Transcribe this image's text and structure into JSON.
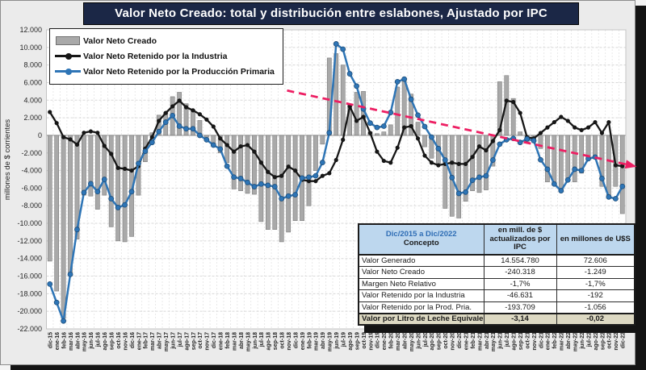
{
  "title": "Valor Neto Creado: total y distribución entre eslabones, Ajustado  por IPC",
  "colors": {
    "title_bg": "#1b2746",
    "title_fg": "#ffffff",
    "frame_bg": "#ebebeb",
    "plot_bg": "#ffffff",
    "bar_fill": "#a9a9a9",
    "bar_stroke": "#707070",
    "industria": "#161616",
    "primaria": "#2e75b6",
    "primaria_edge": "#1f4e79",
    "trend": "#ed1f63",
    "grid": "#d8d8d8",
    "zero_line": "#9a9a9a",
    "table_header_bg": "#bdd7ee",
    "table_header_accent": "#2e6db5",
    "table_last_row_bg": "#ddd9c3"
  },
  "y_axis": {
    "title": "millones de $ corrientes",
    "ticks": [
      "12.000",
      "10.000",
      "8.000",
      "6.000",
      "4.000",
      "2.000",
      "0",
      "-2.000",
      "-4.000",
      "-6.000",
      "-8.000",
      "-10.000",
      "-12.000",
      "-14.000",
      "-16.000",
      "-18.000",
      "-20.000",
      "-22.000"
    ]
  },
  "legend": {
    "items": [
      {
        "label": "Valor Neto Creado",
        "type": "bar",
        "color": "#a9a9a9"
      },
      {
        "label": "Valor Neto Retenido por la Industria",
        "type": "line",
        "color": "#161616"
      },
      {
        "label": "Valor Neto Retenido por la Producción Primaria",
        "type": "line",
        "color": "#2e75b6"
      }
    ]
  },
  "chart_data": {
    "type": "bar",
    "title": "Valor Neto Creado: total y distribución entre eslabones, Ajustado por IPC",
    "ylabel": "millones de $ corrientes",
    "ylim": [
      -22000,
      12000
    ],
    "y_step": 2000,
    "grid": true,
    "legend_position": "top-left",
    "categories": [
      "dic-15",
      "ene-16",
      "feb-16",
      "mar-16",
      "abr-16",
      "may-16",
      "jun-16",
      "jul-16",
      "ago-16",
      "sep-16",
      "oct-16",
      "nov-16",
      "dic-16",
      "ene-17",
      "feb-17",
      "mar-17",
      "abr-17",
      "may-17",
      "jun-17",
      "jul-17",
      "ago-17",
      "sep-17",
      "oct-17",
      "nov-17",
      "dic-17",
      "ene-18",
      "feb-18",
      "mar-18",
      "abr-18",
      "may-18",
      "jun-18",
      "jul-18",
      "ago-18",
      "sep-18",
      "oct-18",
      "nov-18",
      "dic-18",
      "ene-19",
      "feb-19",
      "mar-19",
      "abr-19",
      "may-19",
      "jun-19",
      "jul-19",
      "ago-19",
      "sep-19",
      "oct-19",
      "nov-19",
      "dic-19",
      "ene-20",
      "feb-20",
      "mar-20",
      "abr-20",
      "may-20",
      "jun-20",
      "jul-20",
      "ago-20",
      "sep-20",
      "oct-20",
      "nov-20",
      "dic-20",
      "ene-21",
      "feb-21",
      "mar-21",
      "abr-21",
      "may-21",
      "jun-21",
      "jul-21",
      "ago-21",
      "sep-21",
      "oct-21",
      "nov-21",
      "dic-21",
      "ene-22",
      "feb-22",
      "mar-22",
      "abr-22",
      "may-22",
      "jun-22",
      "jul-22",
      "ago-22",
      "sep-22",
      "oct-22",
      "nov-22",
      "dic-22"
    ],
    "series": [
      {
        "name": "Valor Neto Creado",
        "type": "bar",
        "values": [
          -14300,
          -17700,
          -20800,
          -15900,
          -11800,
          -6800,
          -6900,
          -8400,
          -6800,
          -10400,
          -12000,
          -12100,
          -11500,
          -6800,
          -3000,
          300,
          2300,
          2600,
          4400,
          4900,
          3600,
          2900,
          1700,
          -200,
          -1100,
          -2000,
          -3100,
          -6100,
          -6300,
          -6600,
          -6700,
          -9800,
          -10700,
          -10700,
          -12100,
          -11000,
          -9700,
          -9700,
          -8000,
          -4000,
          -1000,
          8800,
          9300,
          8000,
          3500,
          4900,
          5000,
          400,
          200,
          400,
          1200,
          5500,
          6500,
          4700,
          1500,
          -1300,
          -2600,
          -3200,
          -8300,
          -9200,
          -9400,
          -7500,
          -6300,
          -6500,
          -6200,
          -3500,
          6100,
          6800,
          4200,
          400,
          -900,
          -600,
          -1500,
          -5300,
          -5500,
          -6300,
          -5100,
          -5300,
          -4300,
          -2800,
          -2500,
          -5800,
          -7000,
          -5800,
          -8900
        ]
      },
      {
        "name": "Valor Neto Retenido por la Industria",
        "type": "line",
        "values": [
          2650,
          1400,
          -200,
          -450,
          -1050,
          300,
          450,
          300,
          -1200,
          -2100,
          -3700,
          -3800,
          -4000,
          -3500,
          -1500,
          -200,
          1650,
          2550,
          3300,
          3950,
          3200,
          2850,
          2400,
          1800,
          1000,
          -350,
          -1100,
          -1850,
          -1250,
          -1100,
          -1850,
          -3100,
          -4150,
          -4750,
          -4600,
          -3550,
          -4000,
          -5050,
          -5200,
          -5200,
          -4600,
          -4300,
          -2800,
          -500,
          3300,
          1650,
          2100,
          275,
          -1850,
          -2900,
          -3100,
          -1400,
          900,
          1050,
          -350,
          -2300,
          -3100,
          -3400,
          -3250,
          -3100,
          -3250,
          -3250,
          -2450,
          -1250,
          -1700,
          -650,
          600,
          3950,
          3800,
          2550,
          -200,
          -350,
          275,
          900,
          1500,
          2100,
          1650,
          900,
          600,
          900,
          1500,
          275,
          1500,
          -3400,
          -3500
        ]
      },
      {
        "name": "Valor Neto Retenido por la Producción Primaria",
        "type": "line",
        "values": [
          -16900,
          -19000,
          -21100,
          -15800,
          -10700,
          -6500,
          -5500,
          -6400,
          -5000,
          -7200,
          -8200,
          -7900,
          -6400,
          -3200,
          -1800,
          -800,
          430,
          1500,
          2250,
          1050,
          750,
          750,
          0,
          -500,
          -1100,
          -1550,
          -3500,
          -4750,
          -4900,
          -5350,
          -5830,
          -5530,
          -5680,
          -5830,
          -7200,
          -6900,
          -6750,
          -4850,
          -4760,
          -4600,
          -3080,
          300,
          10400,
          9800,
          7000,
          5600,
          3000,
          1400,
          900,
          1050,
          2600,
          6100,
          6400,
          4100,
          2300,
          1000,
          -200,
          -1500,
          -2800,
          -4800,
          -6600,
          -6450,
          -5100,
          -4760,
          -4600,
          -2800,
          -1000,
          -500,
          -350,
          -800,
          -400,
          -600,
          -2780,
          -3850,
          -5530,
          -6290,
          -5070,
          -3850,
          -4000,
          -2650,
          -2470,
          -4900,
          -7000,
          -7200,
          -5800
        ]
      }
    ],
    "trend_line": {
      "from_index": 35.3,
      "from_value": 5100,
      "to_index": 85.1,
      "to_value": -3300,
      "style": "dashed",
      "arrow": true
    }
  },
  "table": {
    "header": {
      "range": "Dic/2015 a Dic/2022",
      "concept": "Concepto",
      "col_ipc": "en mill. de $ actualizados por IPC",
      "col_usd": "en millones de U$S"
    },
    "rows": [
      {
        "label": "Valor Generado",
        "ipc": "14.554.780",
        "usd": "72.606"
      },
      {
        "label": "Valor Neto Creado",
        "ipc": "-240.318",
        "usd": "-1.249"
      },
      {
        "label": "Margen Neto Relativo",
        "ipc": "-1,7%",
        "usd": "-1,7%"
      },
      {
        "label": "Valor Retenido por la Industria",
        "ipc": "-46.631",
        "usd": "-192"
      },
      {
        "label": "Valor Retenido por la Prod. Pria.",
        "ipc": "-193.709",
        "usd": "-1.056"
      },
      {
        "label": "Valor por Litro de Leche Equivalente",
        "ipc": "-3,14",
        "usd": "-0,02"
      }
    ]
  }
}
